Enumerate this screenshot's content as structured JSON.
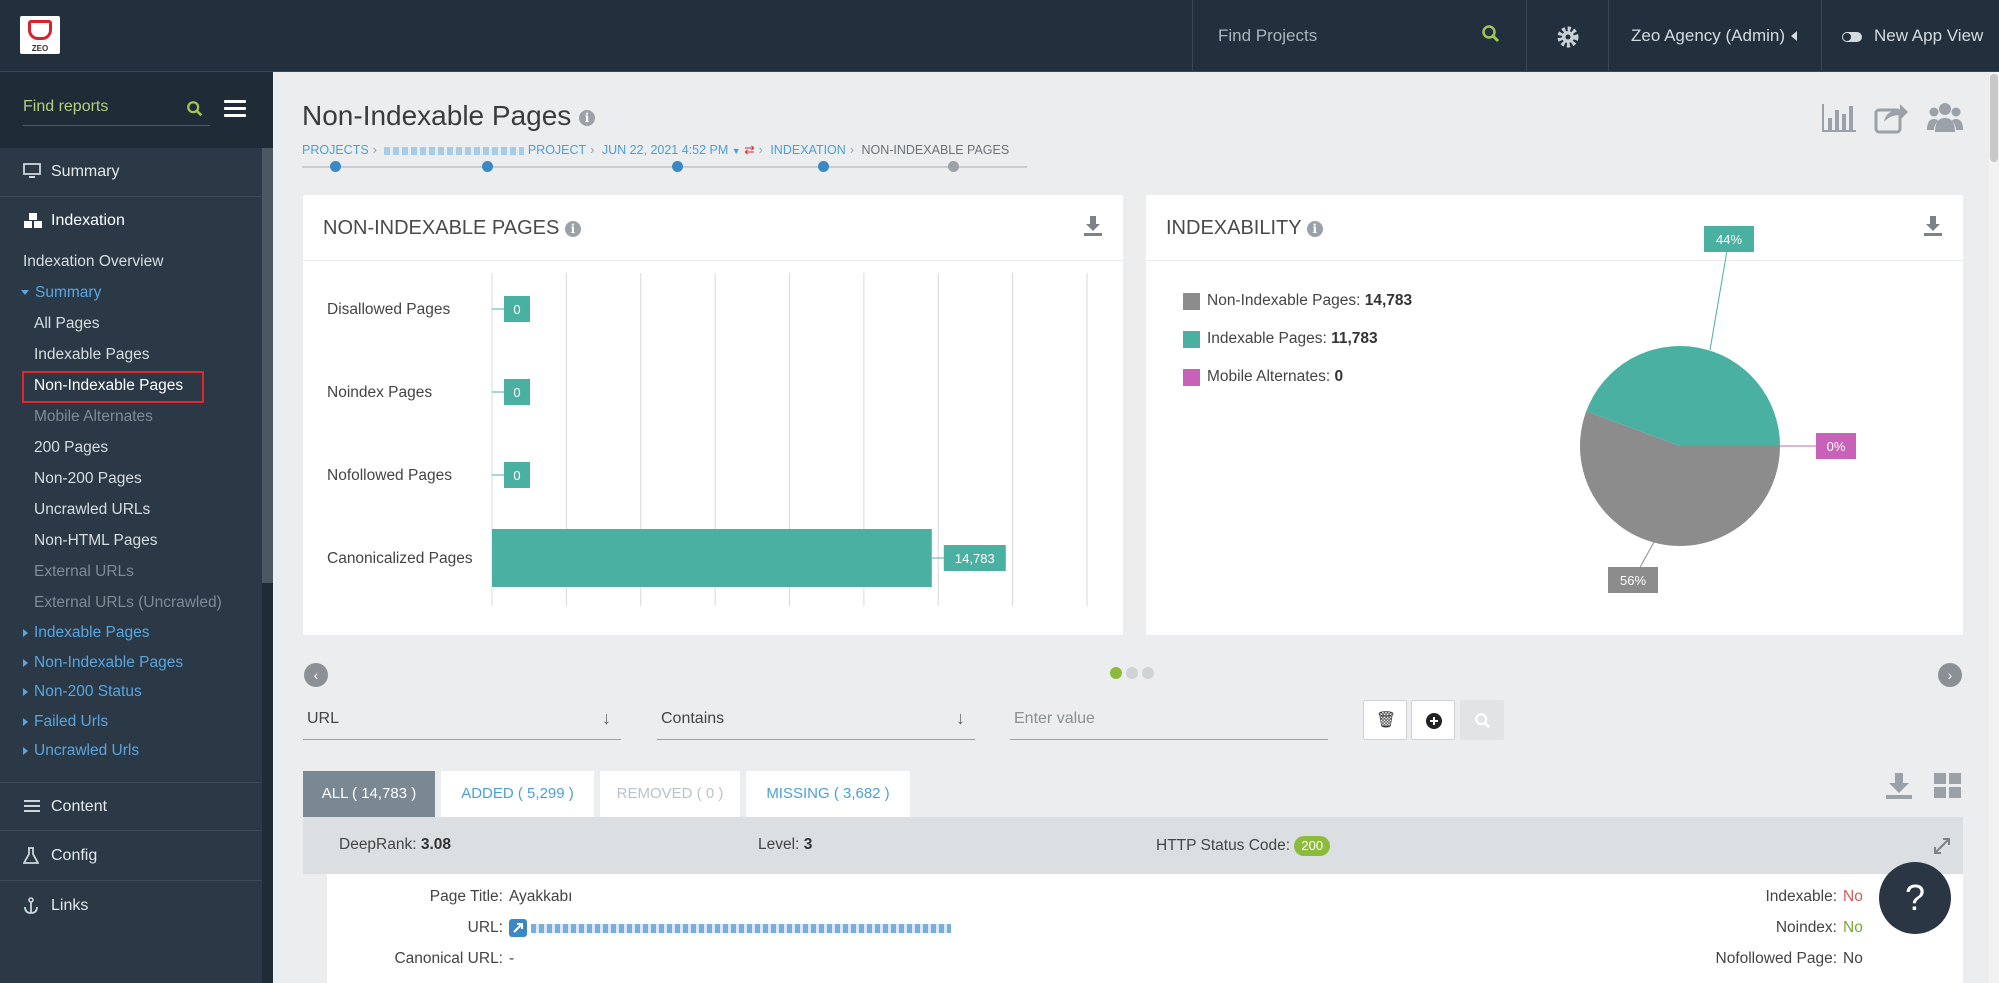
{
  "topbar": {
    "logo_text": "ZEO",
    "search_placeholder": "Find Projects",
    "user": "Zeo Agency (Admin)",
    "app_view": "New App View"
  },
  "sidebar": {
    "search_placeholder": "Find reports",
    "summary": "Summary",
    "indexation": "Indexation",
    "indexation_overview": "Indexation Overview",
    "summary_group": "Summary",
    "items": [
      "All Pages",
      "Indexable Pages",
      "Non-Indexable Pages",
      "Mobile Alternates",
      "200 Pages",
      "Non-200 Pages",
      "Uncrawled URLs",
      "Non-HTML Pages",
      "External URLs",
      "External URLs (Uncrawled)"
    ],
    "groups": [
      "Indexable Pages",
      "Non-Indexable Pages",
      "Non-200 Status",
      "Failed Urls",
      "Uncrawled Urls"
    ],
    "content": "Content",
    "config": "Config",
    "links": "Links"
  },
  "page": {
    "title": "Non-Indexable Pages",
    "crumbs": {
      "projects": "PROJECTS",
      "project": "PROJECT",
      "date": "JUN 22, 2021 4:52 PM",
      "indexation": "INDEXATION",
      "current": "NON-INDEXABLE PAGES"
    }
  },
  "bar_card": {
    "title": "NON-INDEXABLE PAGES",
    "chart_data": {
      "type": "bar",
      "orientation": "horizontal",
      "categories": [
        "Disallowed Pages",
        "Noindex Pages",
        "Nofollowed Pages",
        "Canonicalized Pages"
      ],
      "values": [
        0,
        0,
        0,
        14783
      ],
      "labels": [
        "0",
        "0",
        "0",
        "14,783"
      ],
      "xlim": [
        0,
        20000
      ],
      "grid": true
    }
  },
  "pie_card": {
    "title": "INDEXABILITY",
    "legend": [
      {
        "label": "Non-Indexable Pages:",
        "value": "14,783",
        "color": "#8c8c8c"
      },
      {
        "label": "Indexable Pages:",
        "value": "11,783",
        "color": "#4ab0a2"
      },
      {
        "label": "Mobile Alternates:",
        "value": "0",
        "color": "#c862b8"
      }
    ],
    "chart_data": {
      "type": "pie",
      "categories": [
        "Non-Indexable Pages",
        "Indexable Pages",
        "Mobile Alternates"
      ],
      "values": [
        14783,
        11783,
        0
      ],
      "percent_labels": [
        "56%",
        "44%",
        "0%"
      ],
      "colors": [
        "#8c8c8c",
        "#4ab0a2",
        "#c862b8"
      ]
    }
  },
  "filters": {
    "field": "URL",
    "operator": "Contains",
    "value_placeholder": "Enter value"
  },
  "tabs": [
    {
      "label": "ALL ( 14,783 )"
    },
    {
      "label": "ADDED ( 5,299 )"
    },
    {
      "label": "REMOVED ( 0 )"
    },
    {
      "label": "MISSING ( 3,682 )"
    }
  ],
  "row": {
    "deeprank_label": "DeepRank:",
    "deeprank": "3.08",
    "level_label": "Level:",
    "level": "3",
    "status_label": "HTTP Status Code:",
    "status": "200",
    "page_title_label": "Page Title:",
    "page_title": "Ayakkabı",
    "url_label": "URL:",
    "canonical_label": "Canonical URL:",
    "canonical": "-",
    "indexable_label": "Indexable:",
    "indexable": "No",
    "noindex_label": "Noindex:",
    "noindex": "No",
    "nofollowed_label": "Nofollowed Page:",
    "nofollowed": "No"
  },
  "help": "?"
}
